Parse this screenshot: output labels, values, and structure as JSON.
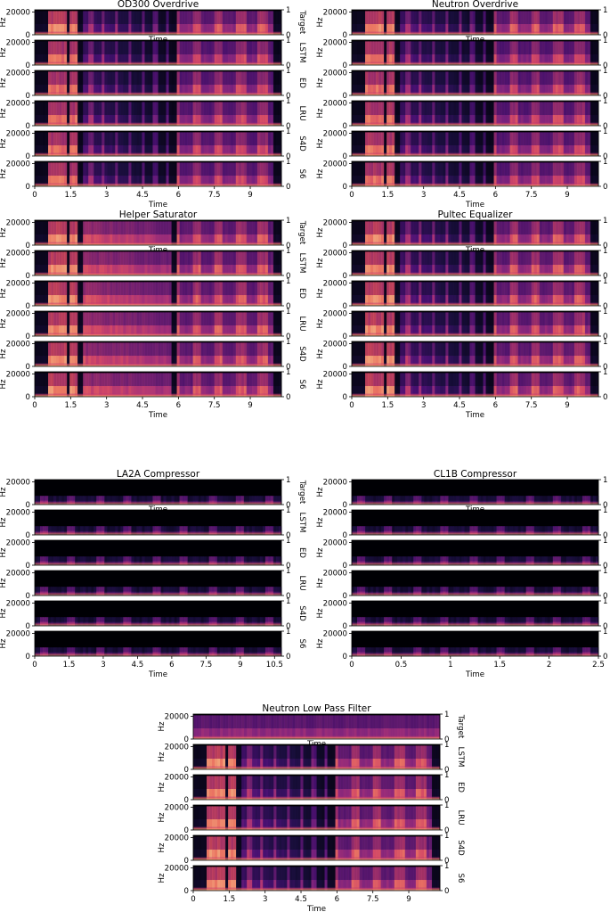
{
  "figure": {
    "colormap": "magma",
    "colors": {
      "background": "#ffffff",
      "axis": "#000000",
      "panel_floor": "#000004"
    }
  },
  "chart_data": [
    {
      "type": "heatmap",
      "title": "OD300 Overdrive",
      "xlabel": "Time",
      "ylabel": "Hz",
      "ylim": [
        0,
        22050
      ],
      "xlim": [
        0,
        10.3
      ],
      "xticks": [
        "0",
        "1.5",
        "3",
        "4.5",
        "6",
        "7.5",
        "9"
      ],
      "xtick_values": [
        0,
        1.5,
        3,
        4.5,
        6,
        7.5,
        9
      ],
      "yticks": [
        "0",
        "20000"
      ],
      "right_axis_ticks": [
        "0",
        "1"
      ],
      "rows": [
        "Target",
        "LSTM",
        "ED",
        "LRU",
        "S4D",
        "S6"
      ],
      "overlap_label": "Time"
    },
    {
      "type": "heatmap",
      "title": "Neutron Overdrive",
      "xlabel": "Time",
      "ylabel": "Hz",
      "ylim": [
        0,
        22050
      ],
      "xlim": [
        0,
        10.3
      ],
      "xticks": [
        "0",
        "1.5",
        "3",
        "4.5",
        "6",
        "7.5",
        "9"
      ],
      "xtick_values": [
        0,
        1.5,
        3,
        4.5,
        6,
        7.5,
        9
      ],
      "yticks": [
        "0",
        "20000"
      ],
      "right_axis_ticks": [
        "0",
        "1"
      ],
      "rows": [
        "Target",
        "LSTM",
        "ED",
        "LRU",
        "S4D",
        "S6"
      ],
      "overlap_label": "Time"
    },
    {
      "type": "heatmap",
      "title": "Helper Saturator",
      "xlabel": "Time",
      "ylabel": "Hz",
      "ylim": [
        0,
        22050
      ],
      "xlim": [
        0,
        10.3
      ],
      "xticks": [
        "0",
        "1.5",
        "3",
        "4.5",
        "6",
        "7.5",
        "9"
      ],
      "xtick_values": [
        0,
        1.5,
        3,
        4.5,
        6,
        7.5,
        9
      ],
      "yticks": [
        "0",
        "20000"
      ],
      "right_axis_ticks": [
        "0",
        "1"
      ],
      "rows": [
        "Target",
        "LSTM",
        "ED",
        "LRU",
        "S4D",
        "S6"
      ],
      "overlap_label": "Time"
    },
    {
      "type": "heatmap",
      "title": "Pultec Equalizer",
      "xlabel": "Time",
      "ylabel": "Hz",
      "ylim": [
        0,
        22050
      ],
      "xlim": [
        0,
        10.3
      ],
      "xticks": [
        "0",
        "1.5",
        "3",
        "4.5",
        "6",
        "7.5",
        "9"
      ],
      "xtick_values": [
        0,
        1.5,
        3,
        4.5,
        6,
        7.5,
        9
      ],
      "yticks": [
        "0",
        "20000"
      ],
      "right_axis_ticks": [
        "0",
        "1"
      ],
      "rows": [
        "Target",
        "LSTM",
        "ED",
        "LRU",
        "S4D",
        "S6"
      ],
      "overlap_label": "Time"
    },
    {
      "type": "heatmap",
      "title": "LA2A Compressor",
      "xlabel": "Time",
      "ylabel": "Hz",
      "ylim": [
        0,
        22050
      ],
      "xlim": [
        0,
        10.8
      ],
      "xticks": [
        "0",
        "1.5",
        "3",
        "4.5",
        "6",
        "7.5",
        "9",
        "10.5"
      ],
      "xtick_values": [
        0,
        1.5,
        3,
        4.5,
        6,
        7.5,
        9,
        10.5
      ],
      "yticks": [
        "0",
        "20000"
      ],
      "right_axis_ticks": [
        "0",
        "1"
      ],
      "rows": [
        "Target",
        "LSTM",
        "ED",
        "LRU",
        "S4D",
        "S6"
      ],
      "overlap_label": "Time"
    },
    {
      "type": "heatmap",
      "title": "CL1B Compressor",
      "xlabel": "Time",
      "ylabel": "Hz",
      "ylim": [
        0,
        22050
      ],
      "xlim": [
        0,
        2.5
      ],
      "xticks": [
        "0",
        "0.5",
        "1",
        "1.5",
        "2",
        "2.5"
      ],
      "xtick_values": [
        0,
        0.5,
        1,
        1.5,
        2,
        2.5
      ],
      "yticks": [
        "0",
        "20000"
      ],
      "right_axis_ticks": [
        "0",
        "1"
      ],
      "rows": [
        "Target",
        "LSTM",
        "ED",
        "LRU",
        "S4D",
        "S6"
      ],
      "overlap_label": "Time"
    },
    {
      "type": "heatmap",
      "title": "Neutron Low Pass Filter",
      "xlabel": "Time",
      "ylabel": "Hz",
      "ylim": [
        0,
        22050
      ],
      "xlim": [
        0,
        10.3
      ],
      "xticks": [
        "0",
        "1.5",
        "3",
        "4.5",
        "6",
        "7.5",
        "9"
      ],
      "xtick_values": [
        0,
        1.5,
        3,
        4.5,
        6,
        7.5,
        9
      ],
      "yticks": [
        "0",
        "20000"
      ],
      "right_axis_ticks": [
        "0",
        "1"
      ],
      "rows": [
        "Target",
        "LSTM",
        "ED",
        "LRU",
        "S4D",
        "S6"
      ],
      "overlap_label": "Time"
    }
  ]
}
